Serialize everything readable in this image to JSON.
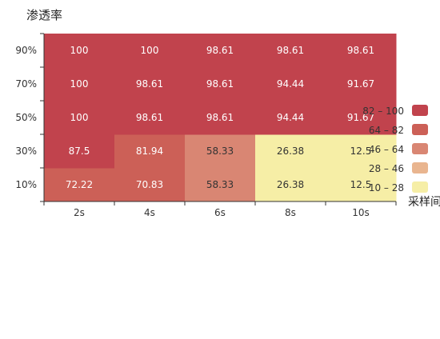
{
  "chart_data": {
    "type": "heatmap",
    "title": "渗透率",
    "x_categories": [
      "2s",
      "4s",
      "6s",
      "8s",
      "10s"
    ],
    "y_categories": [
      "10%",
      "30%",
      "50%",
      "70%",
      "90%"
    ],
    "values": [
      [
        72.22,
        70.83,
        58.33,
        26.38,
        12.5
      ],
      [
        87.5,
        81.94,
        58.33,
        26.38,
        12.5
      ],
      [
        100,
        98.61,
        98.61,
        94.44,
        91.67
      ],
      [
        100,
        98.61,
        98.61,
        94.44,
        91.67
      ],
      [
        100,
        100,
        98.61,
        98.61,
        98.61
      ]
    ],
    "visual_map": {
      "name": "采样间",
      "pieces": [
        {
          "label": "82 – 100",
          "min": 82,
          "max": 100,
          "color": "#c1434d"
        },
        {
          "label": "64 – 82",
          "min": 64,
          "max": 82,
          "color": "#cc6057"
        },
        {
          "label": "46 – 64",
          "min": 46,
          "max": 64,
          "color": "#d98673"
        },
        {
          "label": "28 – 46",
          "min": 28,
          "max": 46,
          "color": "#e9b58f"
        },
        {
          "label": "10 – 28",
          "min": 10,
          "max": 28,
          "color": "#f6eea6"
        }
      ]
    },
    "grid": false,
    "legend_position": "right"
  }
}
